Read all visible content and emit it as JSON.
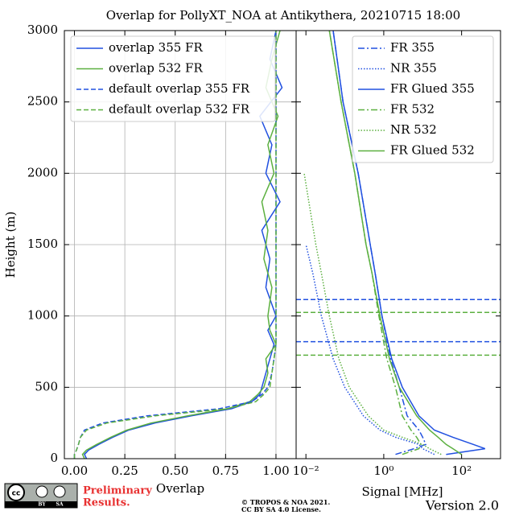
{
  "chart_data": [
    {
      "type": "line",
      "title": "Overlap for PollyXT_NOA at Antikythera, 20210715 18:00",
      "x_label": "Overlap",
      "y_label": "Height (m)",
      "xlim": [
        -0.05,
        1.1
      ],
      "xticks": [
        {
          "value": 0,
          "label": "0.00"
        },
        {
          "value": 0.25,
          "label": "0.25"
        },
        {
          "value": 0.5,
          "label": "0.50"
        },
        {
          "value": 0.75,
          "label": "0.75"
        },
        {
          "value": 1,
          "label": "1.00"
        }
      ],
      "ylim": [
        0,
        3000
      ],
      "yticks": [
        0,
        500,
        1000,
        1500,
        2000,
        2500,
        3000
      ],
      "grid": true,
      "legend": "upper left",
      "heights": [
        0,
        30,
        60,
        100,
        150,
        200,
        250,
        300,
        350,
        400,
        450,
        500,
        600,
        700,
        800,
        900,
        1000,
        1200,
        1400,
        1600,
        1800,
        2000,
        2200,
        2400,
        2600,
        2800,
        3000
      ],
      "series": [
        {
          "name": "overlap 355 FR",
          "color": "#2050e0",
          "style": "solid",
          "values": [
            0.06,
            0.05,
            0.07,
            0.12,
            0.19,
            0.27,
            0.4,
            0.58,
            0.78,
            0.88,
            0.92,
            0.93,
            0.95,
            0.97,
            0.99,
            0.96,
            1.0,
            0.95,
            0.97,
            0.93,
            1.02,
            0.95,
            0.98,
            0.92,
            1.03,
            0.97,
            1.0
          ]
        },
        {
          "name": "overlap 532 FR",
          "color": "#5cb040",
          "style": "solid",
          "values": [
            0.05,
            0.04,
            0.06,
            0.11,
            0.18,
            0.26,
            0.38,
            0.56,
            0.76,
            0.87,
            0.91,
            0.94,
            0.96,
            0.95,
            1.0,
            0.97,
            0.96,
            0.98,
            0.94,
            0.96,
            0.93,
            0.99,
            0.96,
            1.01,
            0.95,
            0.98,
            1.02
          ]
        },
        {
          "name": "default overlap 355 FR",
          "color": "#2050e0",
          "style": "dashed",
          "values": [
            0.0,
            0.0,
            0.01,
            0.02,
            0.03,
            0.05,
            0.14,
            0.36,
            0.72,
            0.88,
            0.93,
            0.96,
            0.98,
            0.99,
            1.0,
            1.0,
            1.0,
            1.0,
            1.0,
            1.0,
            1.0,
            1.0,
            1.0,
            1.0,
            1.0,
            1.0,
            1.0
          ]
        },
        {
          "name": "default overlap 532 FR",
          "color": "#5cb040",
          "style": "dashed",
          "values": [
            0.0,
            0.0,
            0.01,
            0.02,
            0.03,
            0.06,
            0.16,
            0.4,
            0.76,
            0.9,
            0.94,
            0.97,
            0.98,
            0.99,
            1.0,
            1.0,
            1.0,
            1.0,
            1.0,
            1.0,
            1.0,
            1.0,
            1.0,
            1.0,
            1.0,
            1.0,
            1.0
          ]
        }
      ]
    },
    {
      "type": "line",
      "x_label": "Signal [MHz]",
      "log_x": true,
      "xlim": [
        0.0056,
        1000
      ],
      "xticks": [
        {
          "value": 0.01,
          "label": "10⁻²"
        },
        {
          "value": 1,
          "label": "10⁰"
        },
        {
          "value": 100,
          "label": "10²"
        }
      ],
      "ylim": [
        0,
        3000
      ],
      "grid": false,
      "legend": "upper right",
      "heights": [
        30,
        70,
        100,
        150,
        200,
        300,
        500,
        700,
        1000,
        1300,
        1500,
        2000,
        2500,
        3000
      ],
      "series": [
        {
          "name": "FR 355",
          "color": "#2050e0",
          "style": "dashdot",
          "values": [
            2,
            6,
            12,
            10,
            8,
            4,
            2.5,
            1.5,
            0.9,
            0.6,
            0.45,
            0.22,
            0.09,
            0.05
          ]
        },
        {
          "name": "NR 355",
          "color": "#2050e0",
          "style": "dotted",
          "values": [
            20,
            10,
            8,
            2,
            0.8,
            0.3,
            0.1,
            0.05,
            0.025,
            0.015,
            0.01,
            null,
            null,
            null
          ]
        },
        {
          "name": "FR Glued 355",
          "color": "#2050e0",
          "style": "solid",
          "values": [
            40,
            400,
            200,
            60,
            20,
            8,
            3,
            1.6,
            0.9,
            0.6,
            0.45,
            0.22,
            0.09,
            0.05
          ]
        },
        {
          "name": "FR 532",
          "color": "#5cb040",
          "style": "dashdot",
          "values": [
            3,
            8,
            9,
            7,
            5,
            3,
            2,
            1.2,
            0.75,
            0.5,
            0.35,
            0.18,
            0.08,
            0.04
          ]
        },
        {
          "name": "NR 532",
          "color": "#5cb040",
          "style": "dotted",
          "values": [
            30,
            15,
            10,
            3,
            1,
            0.4,
            0.13,
            0.07,
            0.04,
            0.025,
            0.018,
            0.009,
            null,
            null
          ]
        },
        {
          "name": "FR Glued 532",
          "color": "#5cb040",
          "style": "solid",
          "values": [
            100,
            60,
            40,
            25,
            15,
            7,
            2.5,
            1.4,
            0.8,
            0.5,
            0.35,
            0.18,
            0.08,
            0.04
          ]
        }
      ],
      "reference_lines": [
        {
          "value": 1115,
          "color": "#2050e0"
        },
        {
          "value": 1025,
          "color": "#5cb040"
        },
        {
          "value": 820,
          "color": "#2050e0"
        },
        {
          "value": 725,
          "color": "#5cb040"
        }
      ]
    }
  ],
  "footer": {
    "badge": [
      "BY",
      "SA"
    ],
    "preliminary": [
      "Preliminary",
      "Results."
    ],
    "copyright": [
      "© TROPOS & NOA 2021.",
      "CC BY SA 4.0 License."
    ],
    "version": "Version 2.0"
  }
}
